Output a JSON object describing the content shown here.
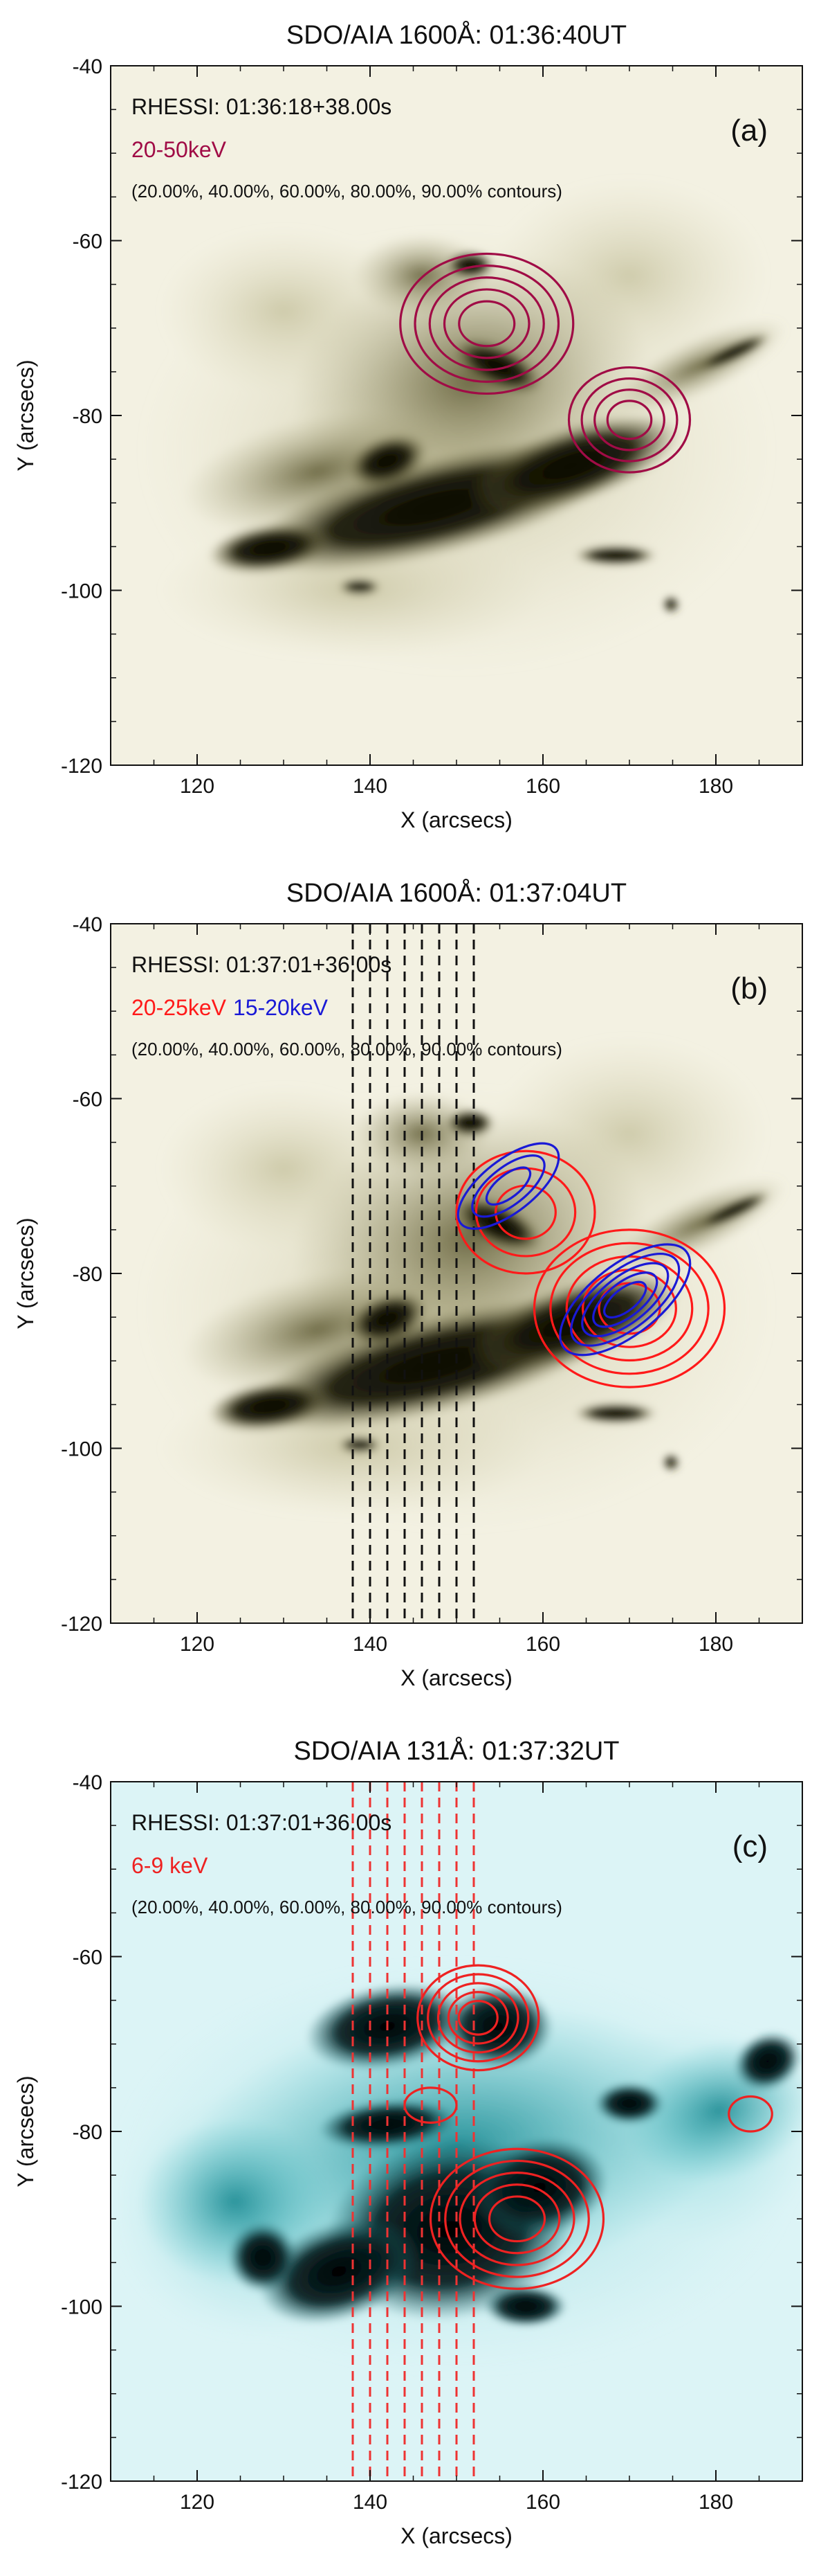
{
  "chart_data": [
    {
      "type": "heatmap",
      "panel_label": "(a)",
      "title": "SDO/AIA 1600Å: 01:36:40UT",
      "xlabel": "X (arcsecs)",
      "ylabel": "Y (arcsecs)",
      "xlim": [
        110,
        190
      ],
      "ylim": [
        -120,
        -40
      ],
      "x_ticks": [
        120,
        140,
        160,
        180
      ],
      "y_ticks": [
        -40,
        -60,
        -80,
        -100,
        -120
      ],
      "colormap": "olive-white",
      "background_color": "#f3f1e2",
      "dark_color": "#0a0900",
      "annotations": [
        "RHESSI: 01:36:18+38.00s",
        "(20.00%, 40.00%, 60.00%, 80.00%, 90.00% contours)"
      ],
      "series": [
        {
          "name": "20-50keV",
          "color": "#a00c46",
          "contours": [
            {
              "peak": [
                153.5,
                -69.5
              ],
              "rx": 10,
              "ry": 8,
              "levels": 5
            },
            {
              "peak": [
                170,
                -80.5
              ],
              "rx": 7,
              "ry": 6,
              "levels": 4
            }
          ]
        }
      ],
      "slits": null
    },
    {
      "type": "heatmap",
      "panel_label": "(b)",
      "title": "SDO/AIA 1600Å: 01:37:04UT",
      "xlabel": "X (arcsecs)",
      "ylabel": "Y (arcsecs)",
      "xlim": [
        110,
        190
      ],
      "ylim": [
        -120,
        -40
      ],
      "x_ticks": [
        120,
        140,
        160,
        180
      ],
      "y_ticks": [
        -40,
        -60,
        -80,
        -100,
        -120
      ],
      "colormap": "olive-white",
      "background_color": "#f3f1e2",
      "dark_color": "#0a0900",
      "annotations": [
        "RHESSI: 01:37:01+36.00s",
        "(20.00%, 40.00%, 60.00%, 80.00%, 90.00% contours)"
      ],
      "series": [
        {
          "name": "20-25keV",
          "color": "#ff1a1a",
          "contours": [
            {
              "peak": [
                170,
                -84
              ],
              "rx": 11,
              "ry": 9,
              "levels": 5
            },
            {
              "peak": [
                158,
                -73
              ],
              "rx": 8,
              "ry": 7,
              "levels": 3
            }
          ]
        },
        {
          "name": "15-20keV",
          "color": "#1a1ad6",
          "contours": [
            {
              "peak": [
                169.5,
                -83
              ],
              "rx": 9,
              "ry": 4,
              "levels": 5,
              "rotate": 38
            },
            {
              "peak": [
                156,
                -70
              ],
              "rx": 7,
              "ry": 3,
              "levels": 3,
              "rotate": 38
            }
          ]
        }
      ],
      "slits": {
        "color": "#111111",
        "x": [
          138,
          140,
          142,
          144,
          146,
          148,
          150,
          152
        ],
        "y_range": [
          -120,
          -40
        ]
      }
    },
    {
      "type": "heatmap",
      "panel_label": "(c)",
      "title": "SDO/AIA 131Å: 01:37:32UT",
      "xlabel": "X (arcsecs)",
      "ylabel": "Y (arcsecs)",
      "xlim": [
        110,
        190
      ],
      "ylim": [
        -120,
        -40
      ],
      "x_ticks": [
        120,
        140,
        160,
        180
      ],
      "y_ticks": [
        -40,
        -60,
        -80,
        -100,
        -120
      ],
      "colormap": "cyan-white",
      "background_color": "#dcf4f6",
      "dark_color": "#000000",
      "annotations": [
        "RHESSI: 01:37:01+36.00s",
        "(20.00%, 40.00%, 60.00%, 80.00%, 90.00% contours)"
      ],
      "series": [
        {
          "name": "6-9 keV",
          "color": "#ee2222",
          "contours": [
            {
              "peak": [
                152.5,
                -67
              ],
              "rx": 7,
              "ry": 6,
              "levels": 5
            },
            {
              "peak": [
                157,
                -90
              ],
              "rx": 10,
              "ry": 8,
              "levels": 5
            },
            {
              "peak": [
                147,
                -77
              ],
              "rx": 3,
              "ry": 2,
              "levels": 1
            },
            {
              "peak": [
                184,
                -78
              ],
              "rx": 2.5,
              "ry": 2,
              "levels": 1
            }
          ]
        }
      ],
      "slits": {
        "color": "#ee3333",
        "x": [
          138,
          140,
          142,
          144,
          146,
          148,
          150,
          152
        ],
        "y_range": [
          -120,
          -40
        ]
      }
    }
  ]
}
